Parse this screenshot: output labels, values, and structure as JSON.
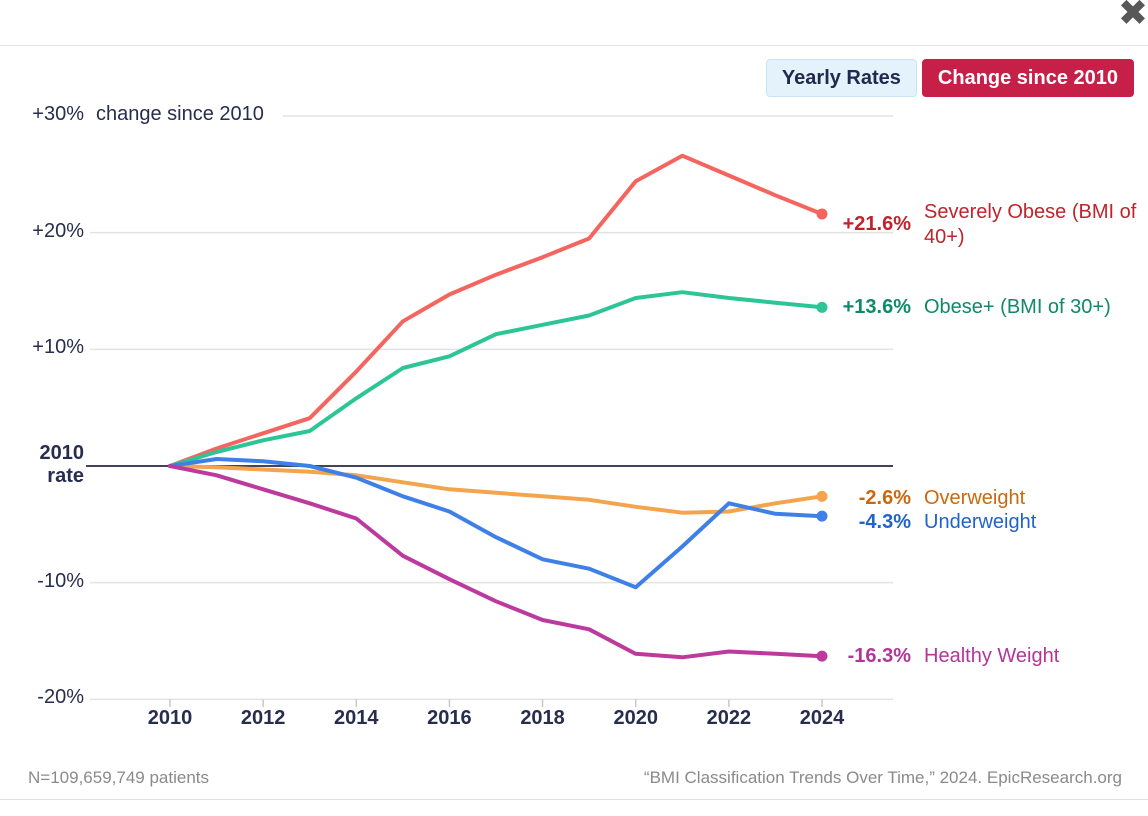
{
  "header": {
    "close_glyph": "✖"
  },
  "toggle": {
    "yearly_label": "Yearly Rates",
    "change_label": "Change since 2010"
  },
  "colors": {
    "grid_line": "#E3E3E3",
    "zero_line": "#42425A",
    "axis_text": "#272D4E",
    "tick": "#C8C8C8",
    "footer_text": "#8A8A8A",
    "toggle_active_bg": "#C72048",
    "toggle_inactive_bg": "#E4F2FB",
    "toggle_inactive_border": "#CBE4F4",
    "close_icon": "#585858"
  },
  "chart_data": {
    "type": "line",
    "ylabel_note": "change since 2010",
    "baseline_label": "2010\nrate",
    "ylim": [
      -20,
      30
    ],
    "xlim": [
      2010,
      2024
    ],
    "grid": true,
    "legend_position": "right-of-line-ends",
    "x": [
      2010,
      2011,
      2012,
      2013,
      2014,
      2015,
      2016,
      2017,
      2018,
      2019,
      2020,
      2021,
      2022,
      2023,
      2024
    ],
    "xticks": [
      2010,
      2012,
      2014,
      2016,
      2018,
      2020,
      2022,
      2024
    ],
    "yticks": [
      {
        "value": 30,
        "label": "+30%"
      },
      {
        "value": 20,
        "label": "+20%"
      },
      {
        "value": 10,
        "label": "+10%"
      },
      {
        "value": 0,
        "label": "2010\nrate",
        "bold": true
      },
      {
        "value": -10,
        "label": "-10%"
      },
      {
        "value": -20,
        "label": "-20%"
      }
    ],
    "series": [
      {
        "name": "Severely Obese (BMI of 40+)",
        "change_label": "+21.6%",
        "line_color": "#F4655F",
        "label_color": "#C0232B",
        "values": [
          0,
          1.5,
          2.8,
          4.1,
          8.1,
          12.4,
          14.7,
          16.4,
          17.9,
          19.5,
          24.4,
          26.6,
          24.9,
          23.2,
          21.6
        ]
      },
      {
        "name": "Obese+ (BMI of 30+)",
        "change_label": "+13.6%",
        "line_color": "#2CC596",
        "label_color": "#0E8A66",
        "values": [
          0,
          1.2,
          2.2,
          3.0,
          5.8,
          8.4,
          9.4,
          11.3,
          12.1,
          12.9,
          14.4,
          14.9,
          14.4,
          14.0,
          13.6
        ]
      },
      {
        "name": "Overweight",
        "change_label": "-2.6%",
        "line_color": "#F3A44C",
        "label_color": "#C9680F",
        "values": [
          0,
          -0.1,
          -0.3,
          -0.5,
          -0.8,
          -1.4,
          -2.0,
          -2.3,
          -2.6,
          -2.9,
          -3.5,
          -4.0,
          -3.9,
          -3.2,
          -2.6
        ]
      },
      {
        "name": "Underweight",
        "change_label": "-4.3%",
        "line_color": "#3F80E8",
        "label_color": "#2163C9",
        "values": [
          0,
          0.6,
          0.4,
          0.0,
          -1.0,
          -2.6,
          -3.9,
          -6.1,
          -8.0,
          -8.8,
          -10.4,
          -6.9,
          -3.2,
          -4.1,
          -4.3
        ]
      },
      {
        "name": "Healthy Weight",
        "change_label": "-16.3%",
        "line_color": "#BC3A9D",
        "label_color": "#B23699",
        "values": [
          0,
          -0.8,
          -2.0,
          -3.2,
          -4.5,
          -7.7,
          -9.7,
          -11.6,
          -13.2,
          -14.0,
          -16.1,
          -16.4,
          -15.9,
          -16.1,
          -16.3
        ]
      }
    ]
  },
  "footer": {
    "left": "N=109,659,749 patients",
    "right": "“BMI Classification Trends Over Time,” 2024. EpicResearch.org"
  }
}
